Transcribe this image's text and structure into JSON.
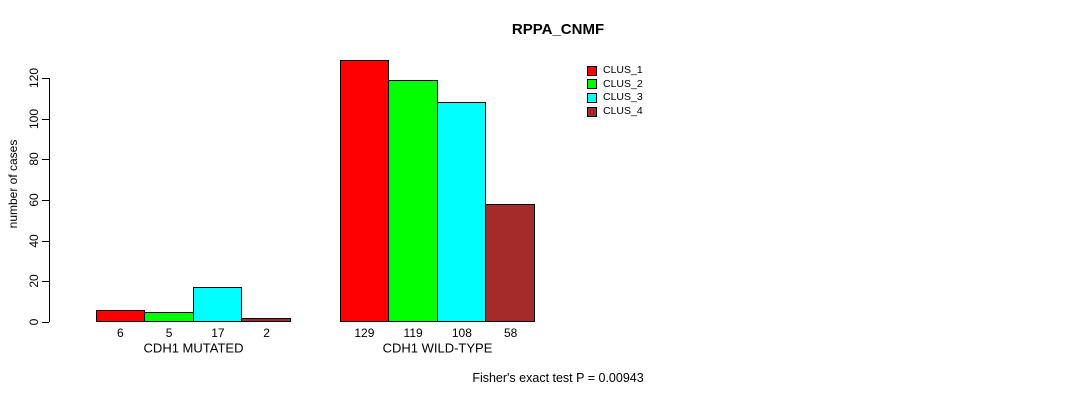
{
  "chart_data": {
    "type": "bar",
    "title": "RPPA_CNMF",
    "ylabel": "number of cases",
    "xlabel": "",
    "ylim": [
      0,
      130
    ],
    "yticks": [
      0,
      20,
      40,
      60,
      80,
      100,
      120
    ],
    "categories": [
      "CDH1 MUTATED",
      "CDH1 WILD-TYPE"
    ],
    "series": [
      {
        "name": "CLUS_1",
        "color": "#FF0000",
        "values": [
          6,
          129
        ]
      },
      {
        "name": "CLUS_2",
        "color": "#00FF00",
        "values": [
          5,
          119
        ]
      },
      {
        "name": "CLUS_3",
        "color": "#00FFFF",
        "values": [
          17,
          108
        ]
      },
      {
        "name": "CLUS_4",
        "color": "#A52A2A",
        "values": [
          2,
          58
        ]
      }
    ],
    "bar_value_labels": [
      [
        "6",
        "5",
        "17",
        "2"
      ],
      [
        "129",
        "119",
        "108",
        "58"
      ]
    ],
    "legend_position": "top-right",
    "grid": false,
    "background": "#ffffff",
    "annotation": "Fisher's exact test P = 0.00943"
  }
}
